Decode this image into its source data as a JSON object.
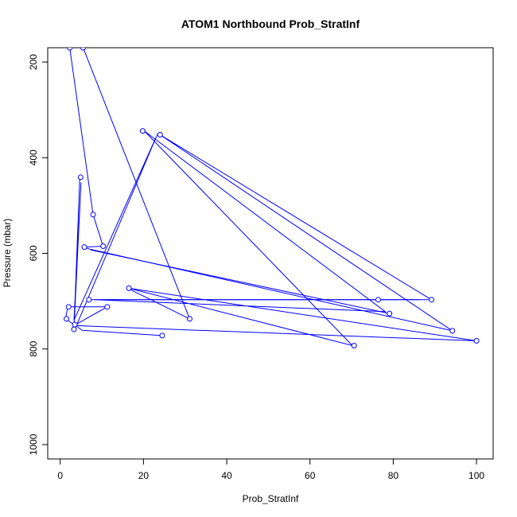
{
  "chart_data": {
    "type": "line",
    "title": "ATOM1 Northbound Prob_StratInf",
    "xlabel": "Prob_StratInf",
    "ylabel": "Pressure (mbar)",
    "xlim": [
      -3,
      104
    ],
    "ylim": [
      1030,
      170
    ],
    "y_reversed": true,
    "grid": false,
    "x_ticks": [
      0,
      20,
      40,
      60,
      80,
      100
    ],
    "x_tick_labels": [
      "0",
      "20",
      "40",
      "60",
      "80",
      "100"
    ],
    "y_ticks": [
      200,
      400,
      600,
      800,
      1000
    ],
    "y_tick_labels": [
      "200",
      "400",
      "600",
      "800",
      "1000"
    ],
    "series": [
      {
        "color": "#0000ff",
        "segments": [
          [
            [
              2.3,
              170
            ],
            [
              7.9,
              519
            ],
            [
              10.3,
              585
            ],
            [
              5.6,
              587
            ],
            [
              7,
              591
            ],
            [
              94.2,
              762
            ],
            [
              24,
              352
            ],
            [
              89.2,
              697
            ],
            [
              8.2,
              697
            ],
            [
              78.1,
              722
            ],
            [
              20.2,
              344
            ],
            [
              70.2,
              793
            ],
            [
              16.5,
              673
            ],
            [
              100,
              783
            ],
            [
              3.3,
              751
            ],
            [
              11.3,
              712
            ],
            [
              1.8,
              712
            ],
            [
              1.3,
              737
            ],
            [
              5.3,
              761
            ],
            [
              24.5,
              772
            ]
          ],
          [
            [
              4.7,
              441
            ],
            [
              3.3,
              757
            ],
            [
              5,
              452
            ],
            [
              3.3,
              740
            ],
            [
              23.3,
              352
            ],
            [
              4,
              749
            ]
          ],
          [
            [
              5.5,
              170
            ],
            [
              31.1,
              737
            ]
          ],
          [
            [
              16.2,
              673
            ],
            [
              31.1,
              737
            ]
          ],
          [
            [
              6.7,
              697
            ],
            [
              86.5,
              697
            ]
          ],
          [
            [
              7.3,
              593
            ],
            [
              79.1,
              726
            ]
          ]
        ],
        "points": [
          [
            2.3,
            170
          ],
          [
            5.5,
            170
          ],
          [
            19.8,
            344
          ],
          [
            24,
            352
          ],
          [
            4.9,
            441
          ],
          [
            7.9,
            519
          ],
          [
            10.3,
            585
          ],
          [
            5.8,
            587
          ],
          [
            16.5,
            673
          ],
          [
            6.9,
            697
          ],
          [
            76.4,
            697
          ],
          [
            89.2,
            697
          ],
          [
            2,
            712
          ],
          [
            11.3,
            712
          ],
          [
            79.1,
            726
          ],
          [
            1.5,
            737
          ],
          [
            31.1,
            737
          ],
          [
            3.5,
            749
          ],
          [
            3.3,
            759
          ],
          [
            94.2,
            762
          ],
          [
            24.5,
            772
          ],
          [
            100,
            783
          ],
          [
            70.6,
            793
          ]
        ]
      }
    ]
  }
}
